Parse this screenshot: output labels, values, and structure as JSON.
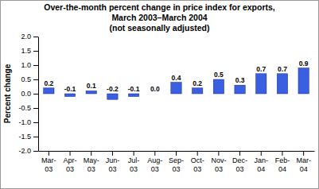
{
  "chart_data": {
    "type": "bar",
    "title": "Over-the-month percent change in price index for exports, March 2003–March 2004",
    "subtitle": "(not seasonally adjusted)",
    "y_label": "Percent change",
    "categories": [
      "Mar-03",
      "Apr-03",
      "May-03",
      "Jun-03",
      "Jul-03",
      "Aug-03",
      "Sep-03",
      "Oct-03",
      "Nov-03",
      "Dec-03",
      "Jan-04",
      "Feb-04",
      "Mar-04"
    ],
    "values": [
      0.2,
      -0.1,
      0.1,
      -0.2,
      -0.1,
      0.0,
      0.4,
      0.2,
      0.5,
      0.3,
      0.7,
      0.7,
      0.9
    ],
    "value_labels": [
      "0.2",
      "-0.1",
      "0.1",
      "-0.2",
      "-0.1",
      "0.0",
      "0.4",
      "0.2",
      "0.5",
      "0.3",
      "0.7",
      "0.7",
      "0.9"
    ],
    "data_labels": true,
    "color": "#3a5fe0",
    "ylim": [
      -2.0,
      2.0
    ],
    "yticks": [
      {
        "value": -2.0,
        "label": "-2.0"
      },
      -1.5,
      {
        "value": -1.0,
        "label": "-1.0"
      },
      -0.5,
      {
        "value": 0.0,
        "label": "0.0"
      },
      0.5,
      {
        "value": 1.0,
        "label": "1.0"
      },
      1.5,
      {
        "value": 2.0,
        "label": "2.0"
      }
    ],
    "grid": false
  }
}
